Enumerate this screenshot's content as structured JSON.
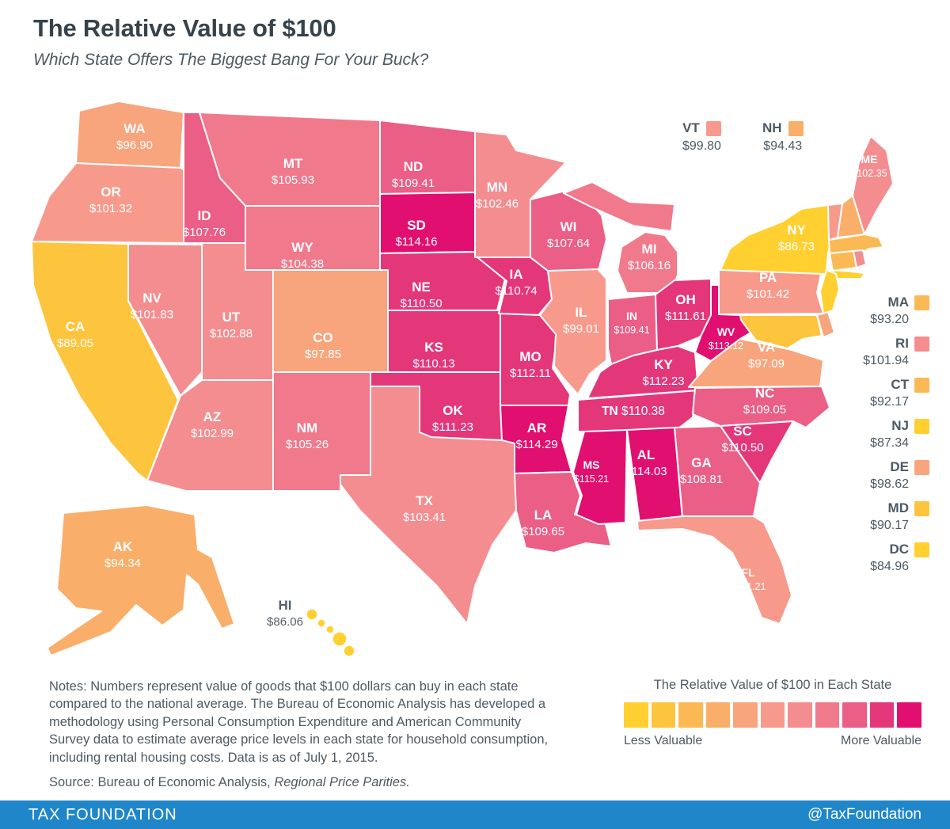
{
  "header": {
    "title": "The Relative Value of $100",
    "subtitle": "Which State Offers The Biggest Bang For Your Buck?"
  },
  "states": [
    {
      "abbr": "AL",
      "value": 114.03
    },
    {
      "abbr": "AK",
      "value": 94.34
    },
    {
      "abbr": "AZ",
      "value": 102.99
    },
    {
      "abbr": "AR",
      "value": 114.29
    },
    {
      "abbr": "CA",
      "value": 89.05
    },
    {
      "abbr": "CO",
      "value": 97.85
    },
    {
      "abbr": "CT",
      "value": 92.17
    },
    {
      "abbr": "DE",
      "value": 98.62
    },
    {
      "abbr": "DC",
      "value": 84.96
    },
    {
      "abbr": "FL",
      "value": 101.21
    },
    {
      "abbr": "GA",
      "value": 108.81
    },
    {
      "abbr": "HI",
      "value": 86.06
    },
    {
      "abbr": "ID",
      "value": 107.76
    },
    {
      "abbr": "IL",
      "value": 99.01
    },
    {
      "abbr": "IN",
      "value": 109.41
    },
    {
      "abbr": "IA",
      "value": 110.74
    },
    {
      "abbr": "KS",
      "value": 110.13
    },
    {
      "abbr": "KY",
      "value": 112.23
    },
    {
      "abbr": "LA",
      "value": 109.65
    },
    {
      "abbr": "ME",
      "value": 102.35
    },
    {
      "abbr": "MD",
      "value": 90.17
    },
    {
      "abbr": "MA",
      "value": 93.2
    },
    {
      "abbr": "MI",
      "value": 106.16
    },
    {
      "abbr": "MN",
      "value": 102.46
    },
    {
      "abbr": "MS",
      "value": 115.21
    },
    {
      "abbr": "MO",
      "value": 112.11
    },
    {
      "abbr": "MT",
      "value": 105.93
    },
    {
      "abbr": "NE",
      "value": 110.5
    },
    {
      "abbr": "NV",
      "value": 101.83
    },
    {
      "abbr": "NH",
      "value": 94.43
    },
    {
      "abbr": "NJ",
      "value": 87.34
    },
    {
      "abbr": "NM",
      "value": 105.26
    },
    {
      "abbr": "NY",
      "value": 86.73
    },
    {
      "abbr": "NC",
      "value": 109.05
    },
    {
      "abbr": "ND",
      "value": 109.41
    },
    {
      "abbr": "OH",
      "value": 111.61
    },
    {
      "abbr": "OK",
      "value": 111.23
    },
    {
      "abbr": "OR",
      "value": 101.32
    },
    {
      "abbr": "PA",
      "value": 101.42
    },
    {
      "abbr": "RI",
      "value": 101.94
    },
    {
      "abbr": "SC",
      "value": 110.5
    },
    {
      "abbr": "SD",
      "value": 114.16
    },
    {
      "abbr": "TN",
      "value": 110.38
    },
    {
      "abbr": "TX",
      "value": 103.41
    },
    {
      "abbr": "UT",
      "value": 102.88
    },
    {
      "abbr": "VT",
      "value": 99.8
    },
    {
      "abbr": "VA",
      "value": 97.09
    },
    {
      "abbr": "WA",
      "value": 96.9
    },
    {
      "abbr": "WV",
      "value": 113.12
    },
    {
      "abbr": "WI",
      "value": 107.64
    },
    {
      "abbr": "WY",
      "value": 104.38
    }
  ],
  "legend_top": [
    "VT",
    "NH"
  ],
  "legend_right": [
    "MA",
    "RI",
    "CT",
    "NJ",
    "DE",
    "MD",
    "DC"
  ],
  "scale": {
    "title": "The Relative Value of $100 in Each State",
    "less_label": "Less Valuable",
    "more_label": "More Valuable",
    "min": 84.96,
    "max": 115.21,
    "colors": [
      "#FFD02F",
      "#FDC43E",
      "#FBB955",
      "#F9AE69",
      "#F8A47C",
      "#F79A8B",
      "#F48D90",
      "#F1798C",
      "#EB5E85",
      "#E4377A",
      "#E10F70"
    ]
  },
  "notes": {
    "text": "Notes: Numbers represent value of goods that $100 dollars can buy in each state compared to the national average. The Bureau of Economic Analysis has developed a methodology using Personal Consumption Expenditure and American Community Survey data to estimate average price levels in each state for household consumption, including rental housing costs. Data is as of July 1, 2015.",
    "source_prefix": "Source: Bureau of Economic Analysis, ",
    "source_italic": "Regional Price Parities."
  },
  "footer": {
    "left": "TAX FOUNDATION",
    "right": "@TaxFoundation",
    "bg": "#1F87C9"
  }
}
